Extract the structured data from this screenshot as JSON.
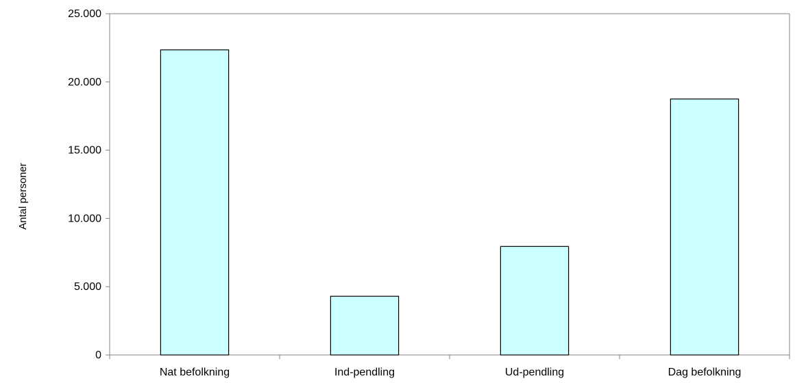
{
  "chart_data": {
    "type": "bar",
    "title": "",
    "xlabel": "",
    "ylabel": "Antal personer",
    "categories": [
      "Nat befolkning",
      "Ind-pendling",
      "Ud-pendling",
      "Dag befolkning"
    ],
    "values": [
      22350,
      4300,
      7950,
      18750
    ],
    "ylim": [
      0,
      25000
    ],
    "yticks": [
      0,
      5000,
      10000,
      15000,
      20000,
      25000
    ],
    "ytick_labels": [
      "0",
      "5.000",
      "10.000",
      "15.000",
      "20.000",
      "25.000"
    ],
    "grid": false,
    "legend": "none",
    "bar_color": "#ccffff",
    "bar_edge_color": "#000000",
    "axis_color": "#808080"
  }
}
